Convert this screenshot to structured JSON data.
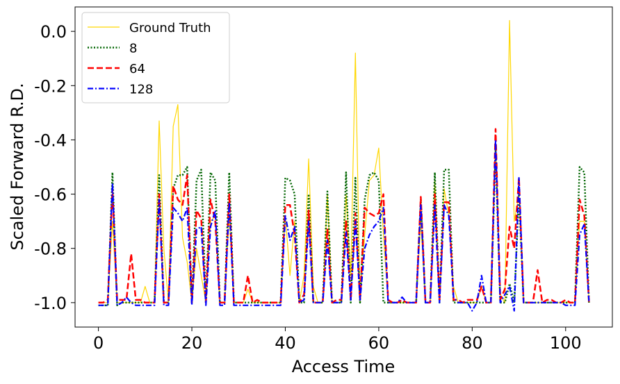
{
  "chart_data": {
    "type": "line",
    "xlabel": "Access Time",
    "ylabel": "Scaled Forward R.D.",
    "xlim": [
      -5,
      110
    ],
    "ylim": [
      -1.09,
      0.09
    ],
    "xticks": [
      0,
      20,
      40,
      60,
      80,
      100
    ],
    "yticks": [
      0.0,
      -0.2,
      -0.4,
      -0.6,
      -0.8,
      -1.0
    ],
    "ytick_labels": [
      "0.0",
      "-0.2",
      "-0.4",
      "-0.6",
      "-0.8",
      "-1.0"
    ],
    "grid": false,
    "legend_position": "top-left",
    "x": [
      0,
      1,
      2,
      3,
      4,
      5,
      6,
      7,
      8,
      9,
      10,
      11,
      12,
      13,
      14,
      15,
      16,
      17,
      18,
      19,
      20,
      21,
      22,
      23,
      24,
      25,
      26,
      27,
      28,
      29,
      30,
      31,
      32,
      33,
      34,
      35,
      36,
      37,
      38,
      39,
      40,
      41,
      42,
      43,
      44,
      45,
      46,
      47,
      48,
      49,
      50,
      51,
      52,
      53,
      54,
      55,
      56,
      57,
      58,
      59,
      60,
      61,
      62,
      63,
      64,
      65,
      66,
      67,
      68,
      69,
      70,
      71,
      72,
      73,
      74,
      75,
      76,
      77,
      78,
      79,
      80,
      81,
      82,
      83,
      84,
      85,
      86,
      87,
      88,
      89,
      90,
      91,
      92,
      93,
      94,
      95,
      96,
      97,
      98,
      99,
      100,
      101,
      102,
      103,
      104,
      105
    ],
    "series": [
      {
        "name": "Ground Truth",
        "color": "#FFD700",
        "style": "solid",
        "width": 1.2,
        "values": [
          -1.0,
          -1.0,
          -1.0,
          -0.7,
          -1.0,
          -1.0,
          -1.0,
          -1.0,
          -1.0,
          -1.0,
          -0.94,
          -1.0,
          -1.0,
          -0.33,
          -0.8,
          -1.0,
          -0.35,
          -0.27,
          -0.76,
          -0.85,
          -1.0,
          -0.8,
          -0.9,
          -1.0,
          -0.7,
          -0.68,
          -1.0,
          -1.0,
          -0.68,
          -1.0,
          -1.0,
          -1.0,
          -0.95,
          -1.0,
          -1.0,
          -1.0,
          -1.0,
          -1.0,
          -1.0,
          -1.0,
          -0.68,
          -0.9,
          -0.7,
          -1.0,
          -0.9,
          -0.47,
          -0.94,
          -1.0,
          -1.0,
          -0.6,
          -1.0,
          -1.0,
          -1.0,
          -0.6,
          -0.9,
          -0.08,
          -1.0,
          -0.75,
          -0.55,
          -0.53,
          -0.43,
          -0.75,
          -1.0,
          -1.0,
          -1.0,
          -1.0,
          -1.0,
          -1.0,
          -1.0,
          -0.7,
          -1.0,
          -1.0,
          -0.55,
          -1.0,
          -0.58,
          -0.68,
          -0.94,
          -1.0,
          -1.0,
          -1.0,
          -1.0,
          -1.0,
          -0.94,
          -1.0,
          -1.0,
          -0.4,
          -0.97,
          -1.0,
          0.04,
          -0.7,
          -0.6,
          -1.0,
          -1.0,
          -1.0,
          -1.0,
          -1.0,
          -1.0,
          -1.0,
          -1.0,
          -1.0,
          -1.0,
          -1.0,
          -1.0,
          -0.7,
          -0.7,
          -1.0
        ]
      },
      {
        "name": "8",
        "color": "#006400",
        "style": "dotted",
        "width": 2.5,
        "values": [
          -1.01,
          -1.01,
          -1.01,
          -0.52,
          -1.01,
          -1.0,
          -1.0,
          -1.0,
          -1.0,
          -1.0,
          -1.0,
          -1.0,
          -1.0,
          -0.53,
          -1.0,
          -1.0,
          -0.58,
          -0.53,
          -0.53,
          -0.5,
          -1.0,
          -0.55,
          -0.51,
          -1.0,
          -0.52,
          -0.55,
          -1.0,
          -1.0,
          -0.52,
          -1.0,
          -1.0,
          -1.0,
          -1.0,
          -1.0,
          -1.0,
          -1.0,
          -1.0,
          -1.0,
          -1.0,
          -1.0,
          -0.54,
          -0.55,
          -0.6,
          -1.0,
          -1.0,
          -0.6,
          -1.0,
          -1.0,
          -1.0,
          -0.59,
          -1.0,
          -1.0,
          -1.0,
          -0.52,
          -1.0,
          -0.54,
          -1.0,
          -0.62,
          -0.53,
          -0.52,
          -0.55,
          -1.0,
          -1.0,
          -1.0,
          -1.0,
          -1.0,
          -1.0,
          -1.0,
          -1.0,
          -0.62,
          -1.0,
          -1.0,
          -0.52,
          -1.0,
          -0.51,
          -0.51,
          -1.0,
          -1.0,
          -1.0,
          -1.0,
          -1.0,
          -1.0,
          -1.0,
          -1.0,
          -1.0,
          -0.44,
          -1.0,
          -1.0,
          -0.93,
          -1.0,
          -0.6,
          -1.0,
          -1.0,
          -1.0,
          -1.0,
          -1.0,
          -1.0,
          -1.0,
          -1.0,
          -1.0,
          -1.0,
          -1.0,
          -1.0,
          -0.5,
          -0.52,
          -1.0
        ]
      },
      {
        "name": "64",
        "color": "#FF0000",
        "style": "dashed",
        "width": 2.5,
        "values": [
          -1.0,
          -1.0,
          -0.99,
          -0.58,
          -0.99,
          -0.99,
          -0.99,
          -0.82,
          -0.99,
          -0.99,
          -1.0,
          -1.0,
          -1.0,
          -0.6,
          -1.0,
          -1.0,
          -0.57,
          -0.62,
          -0.64,
          -0.53,
          -1.0,
          -0.66,
          -0.69,
          -1.0,
          -0.62,
          -0.7,
          -1.0,
          -1.0,
          -0.6,
          -1.0,
          -1.0,
          -1.0,
          -0.9,
          -1.0,
          -0.99,
          -1.0,
          -1.0,
          -1.0,
          -1.0,
          -1.0,
          -0.64,
          -0.64,
          -0.75,
          -1.0,
          -0.97,
          -0.66,
          -1.0,
          -1.0,
          -1.0,
          -0.73,
          -1.0,
          -0.99,
          -0.99,
          -0.7,
          -0.99,
          -0.67,
          -0.99,
          -0.65,
          -0.67,
          -0.68,
          -0.67,
          -0.6,
          -0.99,
          -1.0,
          -1.0,
          -0.99,
          -1.0,
          -1.0,
          -1.0,
          -0.61,
          -1.0,
          -1.0,
          -0.6,
          -0.99,
          -0.63,
          -0.63,
          -0.99,
          -0.99,
          -1.0,
          -0.99,
          -0.99,
          -0.99,
          -0.94,
          -1.0,
          -1.0,
          -0.36,
          -0.99,
          -0.95,
          -0.72,
          -0.8,
          -0.54,
          -1.0,
          -1.0,
          -1.0,
          -0.88,
          -1.0,
          -0.99,
          -0.99,
          -1.0,
          -1.0,
          -0.99,
          -1.0,
          -1.0,
          -0.62,
          -0.68,
          -1.0
        ]
      },
      {
        "name": "128",
        "color": "#0000FF",
        "style": "dashdot",
        "width": 2.2,
        "values": [
          -1.01,
          -1.01,
          -1.01,
          -0.56,
          -1.01,
          -1.0,
          -0.98,
          -1.0,
          -1.01,
          -1.01,
          -1.01,
          -1.01,
          -1.01,
          -0.62,
          -1.01,
          -1.01,
          -0.65,
          -0.67,
          -0.7,
          -0.65,
          -1.01,
          -0.73,
          -0.72,
          -1.01,
          -0.72,
          -0.66,
          -1.01,
          -1.01,
          -0.63,
          -1.01,
          -1.01,
          -1.01,
          -1.01,
          -1.01,
          -1.01,
          -1.01,
          -1.01,
          -1.01,
          -1.01,
          -1.01,
          -0.68,
          -0.77,
          -0.72,
          -1.0,
          -0.99,
          -0.7,
          -1.0,
          -1.0,
          -1.0,
          -0.77,
          -1.0,
          -1.0,
          -1.0,
          -0.74,
          -0.99,
          -0.7,
          -0.99,
          -0.8,
          -0.75,
          -0.72,
          -0.7,
          -0.65,
          -1.0,
          -1.0,
          -1.0,
          -0.98,
          -1.0,
          -1.0,
          -1.0,
          -0.64,
          -1.0,
          -1.0,
          -0.64,
          -1.0,
          -0.64,
          -0.68,
          -0.98,
          -1.0,
          -1.0,
          -1.0,
          -1.03,
          -1.0,
          -0.9,
          -1.0,
          -1.0,
          -0.4,
          -1.0,
          -0.97,
          -0.94,
          -1.03,
          -0.54,
          -1.0,
          -1.0,
          -1.0,
          -1.0,
          -1.0,
          -1.0,
          -1.0,
          -1.0,
          -1.0,
          -1.01,
          -1.01,
          -1.01,
          -0.75,
          -0.71,
          -1.0
        ]
      }
    ]
  }
}
